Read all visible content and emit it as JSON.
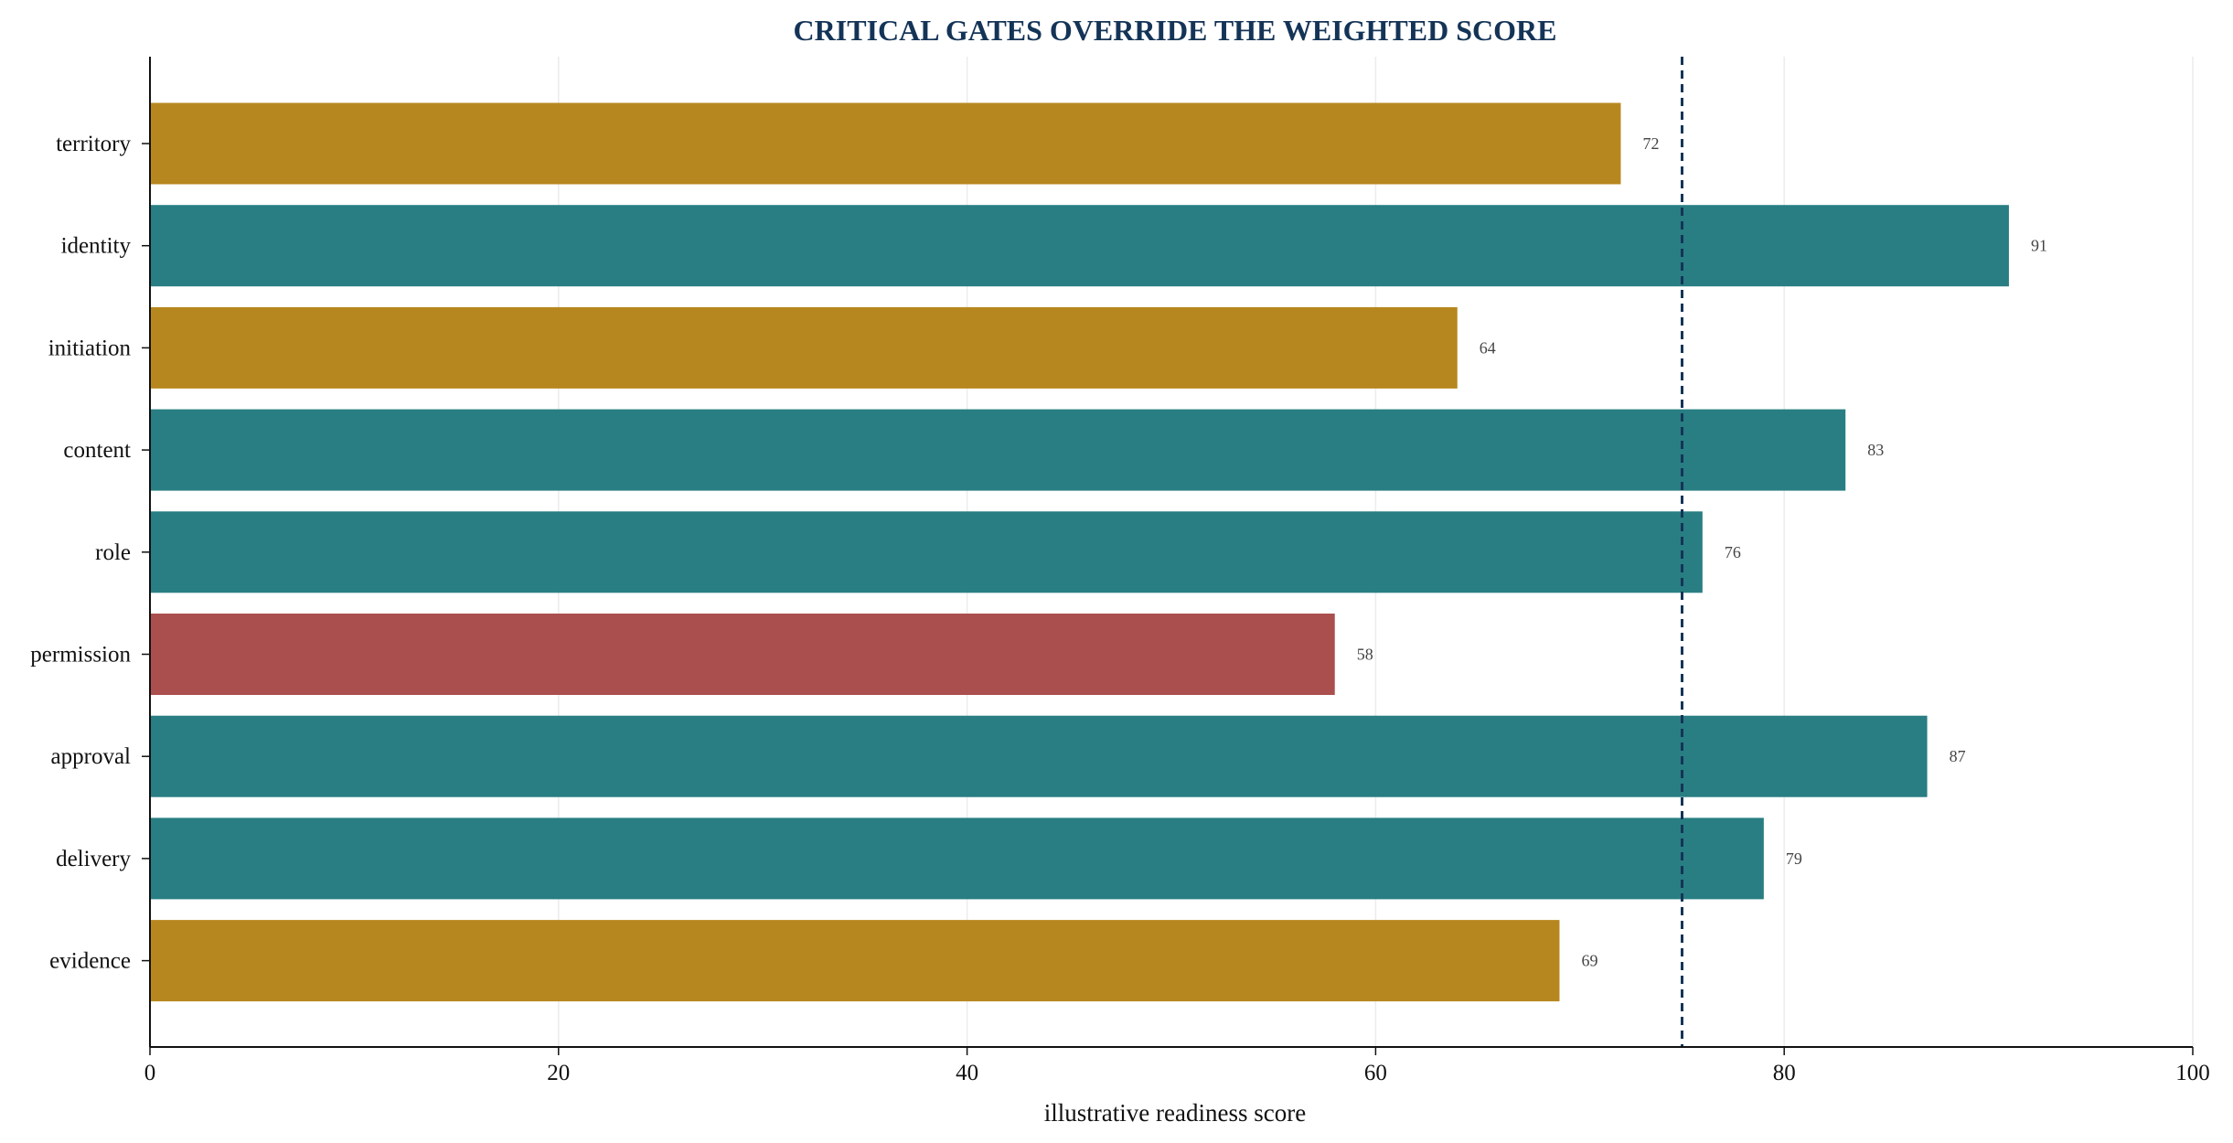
{
  "chart_data": {
    "type": "bar",
    "orientation": "horizontal",
    "title": "CRITICAL GATES OVERRIDE THE WEIGHTED SCORE",
    "xlabel": "illustrative readiness score",
    "ylabel": "",
    "xlim": [
      0,
      100
    ],
    "xticks": [
      0,
      20,
      40,
      60,
      80,
      100
    ],
    "grid": "vertical",
    "threshold": 75,
    "categories": [
      "territory",
      "identity",
      "initiation",
      "content",
      "role",
      "permission",
      "approval",
      "delivery",
      "evidence"
    ],
    "values": [
      72,
      91,
      64,
      83,
      76,
      58,
      87,
      79,
      69
    ],
    "colors": [
      "#b7871f",
      "#287e82",
      "#b7871f",
      "#287e82",
      "#287e82",
      "#ab4e4e",
      "#287e82",
      "#287e82",
      "#b7871f"
    ],
    "value_labels": [
      "72",
      "91",
      "64",
      "83",
      "76",
      "58",
      "87",
      "79",
      "69"
    ],
    "threshold_color": "#143457",
    "axis_color": "#111111",
    "grid_color": "#ececec"
  }
}
